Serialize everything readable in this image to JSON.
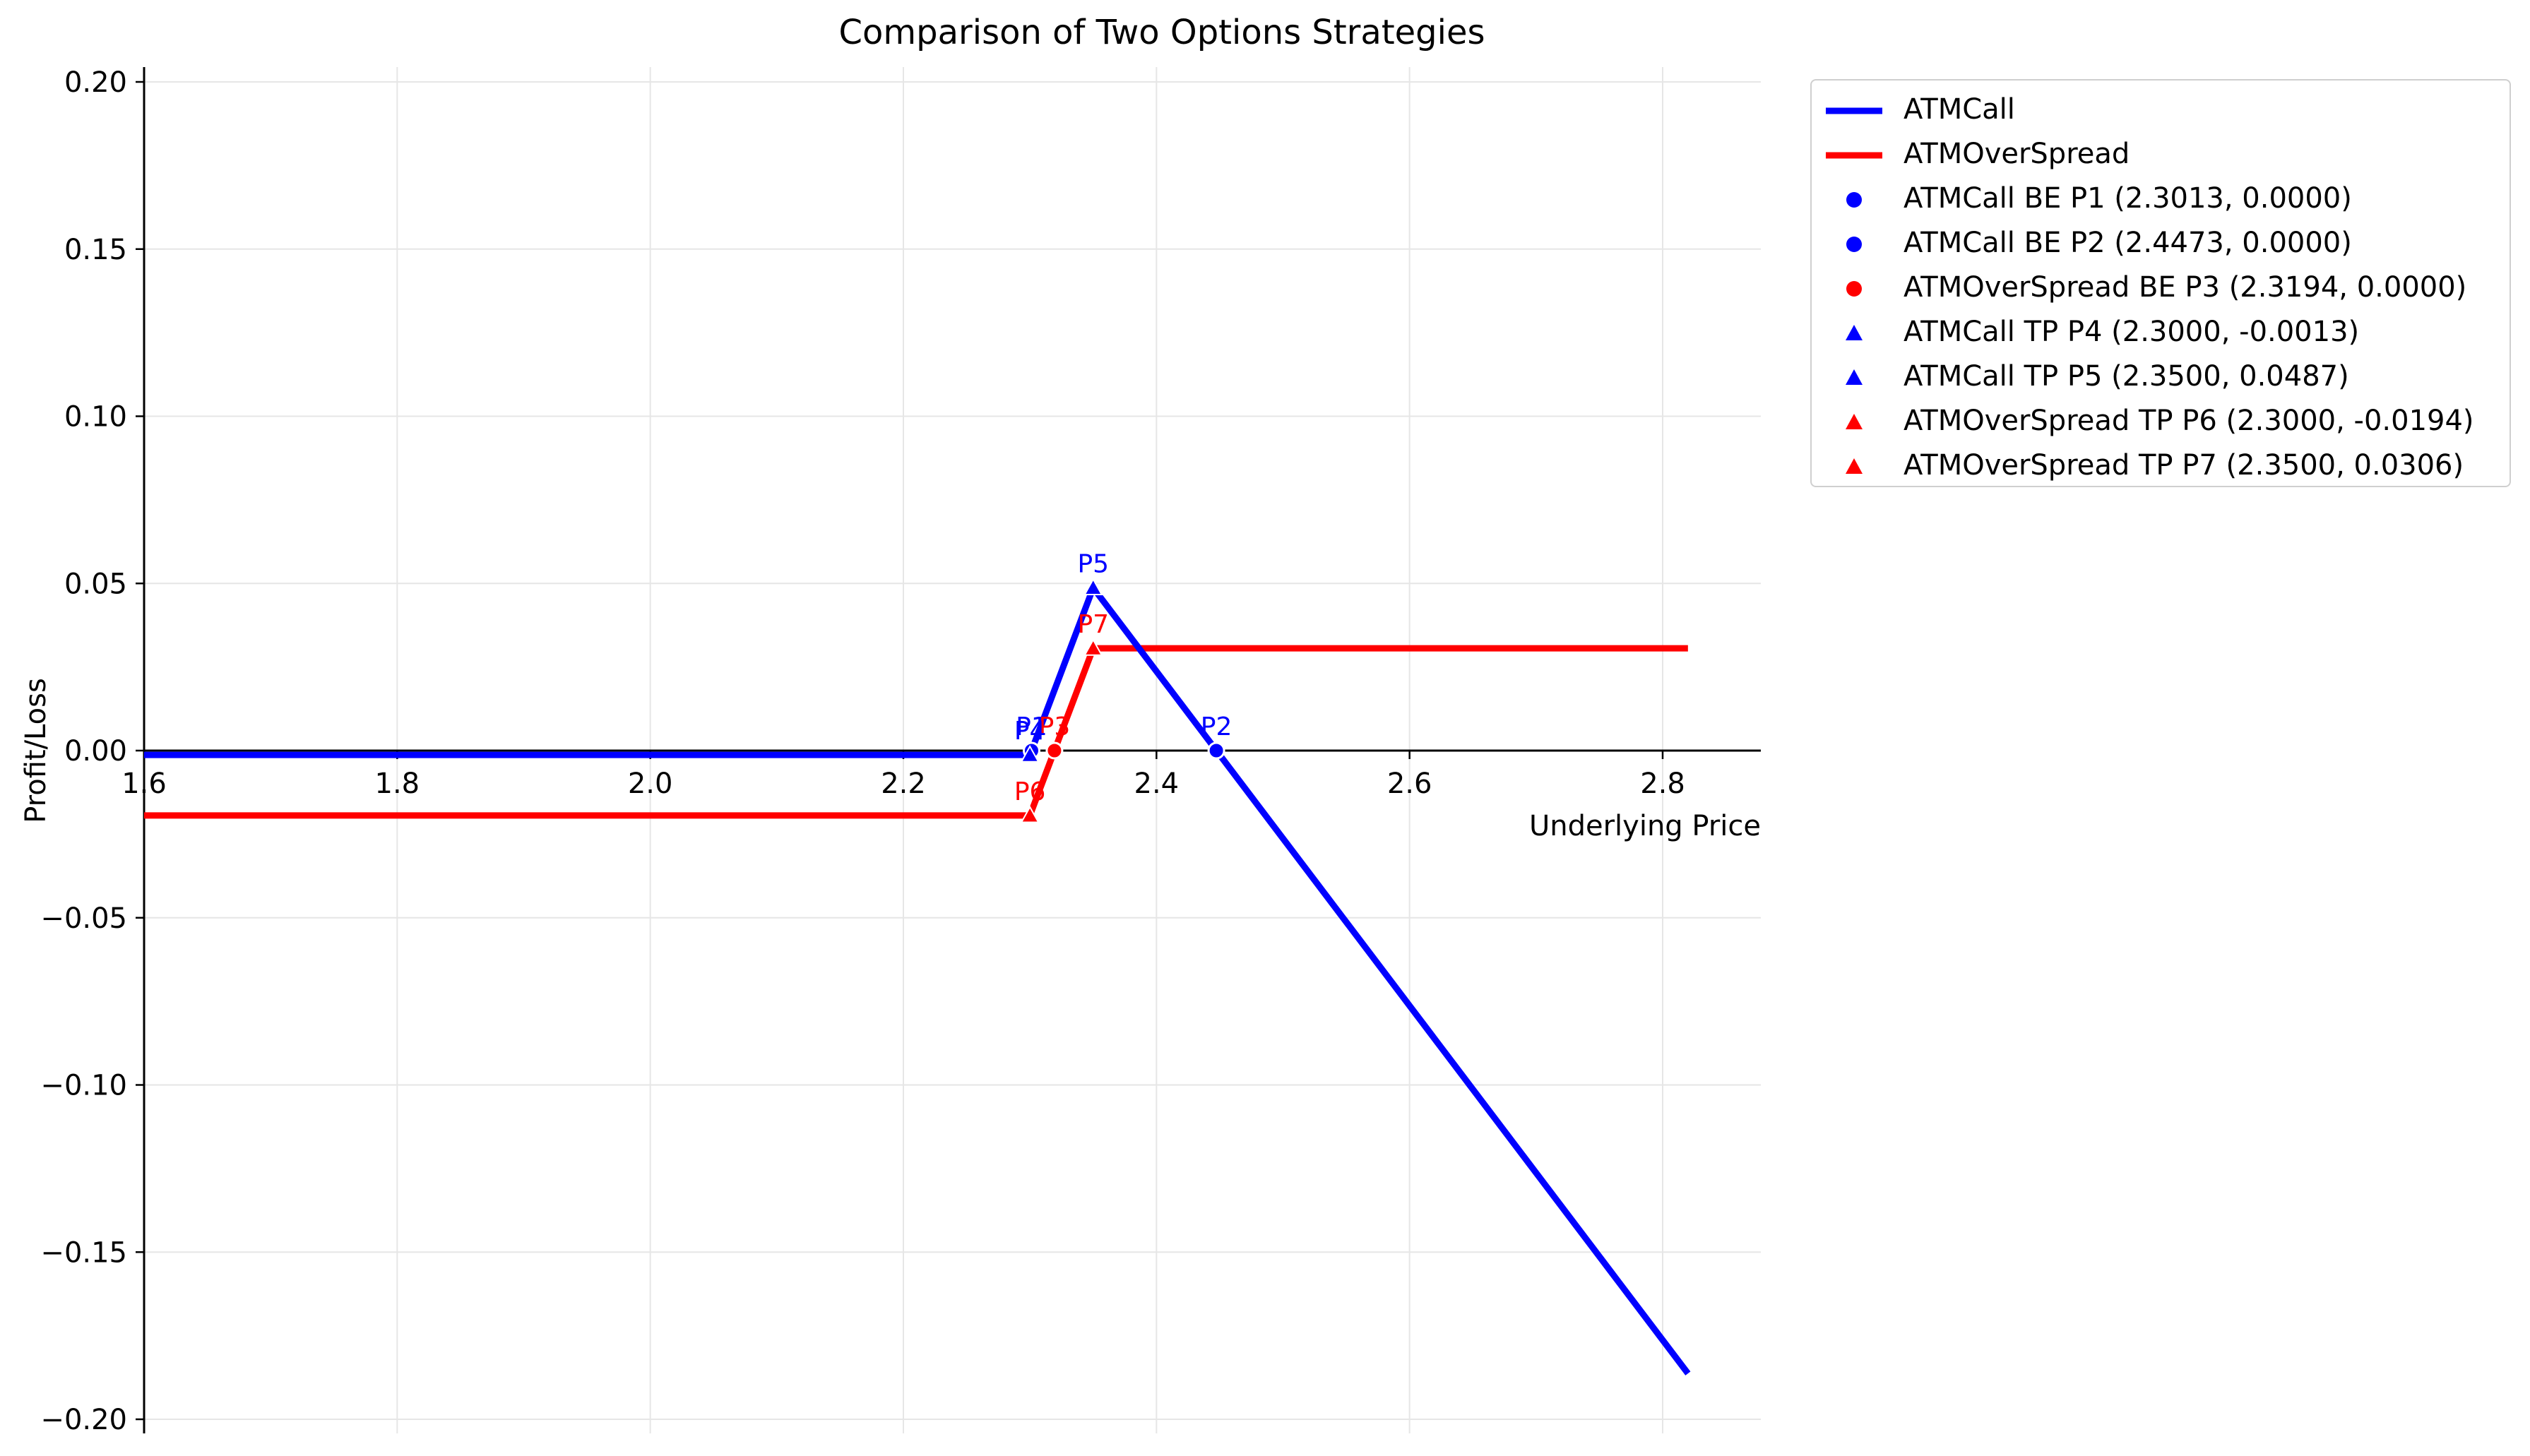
{
  "chart_data": {
    "type": "line",
    "title": "Comparison of Two Options Strategies",
    "xlabel": "Underlying Price",
    "ylabel": "Profit/Loss",
    "xlim": [
      1.6,
      2.88
    ],
    "ylim": [
      -0.205,
      0.205
    ],
    "x_ticks": [
      1.6,
      1.8,
      2.0,
      2.2,
      2.4,
      2.6,
      2.8
    ],
    "x_tick_labels": [
      "1.6",
      "1.8",
      "2.0",
      "2.2",
      "2.4",
      "2.6",
      "2.8"
    ],
    "y_ticks": [
      -0.2,
      -0.15,
      -0.1,
      -0.05,
      0.0,
      0.05,
      0.1,
      0.15,
      0.2
    ],
    "y_tick_labels": [
      "−0.20",
      "−0.15",
      "−0.10",
      "−0.05",
      "0.00",
      "0.05",
      "0.10",
      "0.15",
      "0.20"
    ],
    "grid": true,
    "legend_position": "outside-top-right",
    "series": [
      {
        "name": "ATMCall",
        "color": "#0000ff",
        "x": [
          1.6,
          2.3,
          2.35,
          2.82
        ],
        "y": [
          -0.0013,
          -0.0013,
          0.0487,
          -0.1863
        ]
      },
      {
        "name": "ATMOverSpread",
        "color": "#ff0000",
        "x": [
          1.6,
          2.3,
          2.35,
          2.82
        ],
        "y": [
          -0.0194,
          -0.0194,
          0.0306,
          0.0306
        ]
      }
    ],
    "points": [
      {
        "label": "P1",
        "legend": "ATMCall BE P1 (2.3013, 0.0000)",
        "x": 2.3013,
        "y": 0.0,
        "marker": "circle",
        "color": "#0000ff"
      },
      {
        "label": "P2",
        "legend": "ATMCall BE P2 (2.4473, 0.0000)",
        "x": 2.4473,
        "y": 0.0,
        "marker": "circle",
        "color": "#0000ff"
      },
      {
        "label": "P3",
        "legend": "ATMOverSpread BE P3 (2.3194, 0.0000)",
        "x": 2.3194,
        "y": 0.0,
        "marker": "circle",
        "color": "#ff0000"
      },
      {
        "label": "P4",
        "legend": "ATMCall TP P4 (2.3000, -0.0013)",
        "x": 2.3,
        "y": -0.0013,
        "marker": "triangle",
        "color": "#0000ff"
      },
      {
        "label": "P5",
        "legend": "ATMCall TP P5 (2.3500, 0.0487)",
        "x": 2.35,
        "y": 0.0487,
        "marker": "triangle",
        "color": "#0000ff"
      },
      {
        "label": "P6",
        "legend": "ATMOverSpread TP P6 (2.3000, -0.0194)",
        "x": 2.3,
        "y": -0.0194,
        "marker": "triangle",
        "color": "#ff0000"
      },
      {
        "label": "P7",
        "legend": "ATMOverSpread TP P7 (2.3500, 0.0306)",
        "x": 2.35,
        "y": 0.0306,
        "marker": "triangle",
        "color": "#ff0000"
      }
    ]
  }
}
